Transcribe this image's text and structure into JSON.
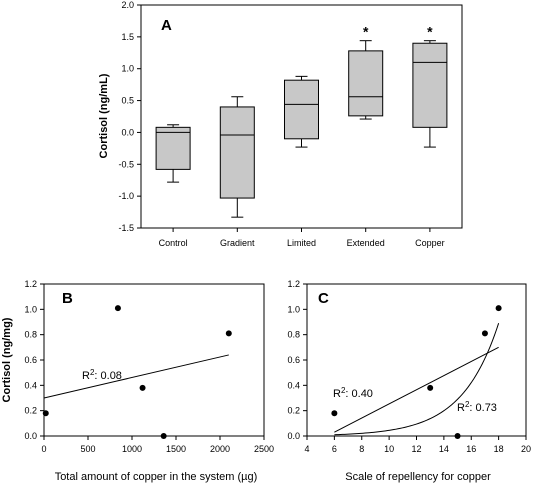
{
  "chart_data": [
    {
      "panel": "A",
      "type": "box",
      "ylabel": "Cortisol (ng/mL)",
      "ylim": [
        -1.5,
        2.0
      ],
      "yticks": [
        "-1.5",
        "-1.0",
        "-0.5",
        "0.0",
        "0.5",
        "1.0",
        "1.5",
        "2.0"
      ],
      "categories": [
        "Control",
        "Gradient",
        "Limited",
        "Extended",
        "Copper"
      ],
      "boxes": [
        {
          "category": "Control",
          "whisker_low": -0.78,
          "q1": -0.58,
          "median": 0.0,
          "q3": 0.08,
          "whisker_high": 0.12,
          "significant": ""
        },
        {
          "category": "Gradient",
          "whisker_low": -1.33,
          "q1": -1.03,
          "median": -0.04,
          "q3": 0.4,
          "whisker_high": 0.56,
          "significant": ""
        },
        {
          "category": "Limited",
          "whisker_low": -0.23,
          "q1": -0.1,
          "median": 0.44,
          "q3": 0.82,
          "whisker_high": 0.88,
          "significant": ""
        },
        {
          "category": "Extended",
          "whisker_low": 0.21,
          "q1": 0.26,
          "median": 0.56,
          "q3": 1.28,
          "whisker_high": 1.44,
          "significant": "*"
        },
        {
          "category": "Copper",
          "whisker_low": -0.23,
          "q1": 0.08,
          "median": 1.1,
          "q3": 1.4,
          "whisker_high": 1.44,
          "significant": "*"
        }
      ]
    },
    {
      "panel": "B",
      "type": "scatter",
      "xlabel": "Total amount of copper in the system (µg)",
      "ylabel": "Cortisol (ng/mg)",
      "xlim": [
        0,
        2500
      ],
      "ylim": [
        0,
        1.2
      ],
      "xticks": [
        "0",
        "500",
        "1000",
        "1500",
        "2000",
        "2500"
      ],
      "yticks": [
        "0.0",
        "0.2",
        "0.4",
        "0.6",
        "0.8",
        "1.0",
        "1.2"
      ],
      "points": [
        {
          "x": 20,
          "y": 0.18
        },
        {
          "x": 840,
          "y": 1.01
        },
        {
          "x": 1120,
          "y": 0.38
        },
        {
          "x": 1360,
          "y": 0.0
        },
        {
          "x": 2100,
          "y": 0.81
        }
      ],
      "fit_line": {
        "x": [
          0,
          2100
        ],
        "y": [
          0.3,
          0.64
        ]
      },
      "annotation": {
        "label": "R",
        "sup": "2",
        "value": ": 0.08"
      }
    },
    {
      "panel": "C",
      "type": "scatter",
      "xlabel": "Scale of repellency for copper",
      "ylabel": "",
      "xlim": [
        4,
        20
      ],
      "ylim": [
        0,
        1.2
      ],
      "xticks": [
        "4",
        "6",
        "8",
        "10",
        "12",
        "14",
        "16",
        "18",
        "20"
      ],
      "yticks": [
        "0.0",
        "0.2",
        "0.4",
        "0.6",
        "0.8",
        "1.0",
        "1.2"
      ],
      "points": [
        {
          "x": 6,
          "y": 0.18
        },
        {
          "x": 13,
          "y": 0.38
        },
        {
          "x": 15,
          "y": 0.0
        },
        {
          "x": 17,
          "y": 0.81
        },
        {
          "x": 18,
          "y": 1.01
        }
      ],
      "fit_line": {
        "x": [
          6,
          18
        ],
        "y": [
          0.03,
          0.7
        ]
      },
      "fit_curve": {
        "a": 0.01,
        "b": 0.3741,
        "x0": 6,
        "x1": 18
      },
      "annotations": [
        {
          "label": "R",
          "sup": "2",
          "value": ": 0.40"
        },
        {
          "label": "R",
          "sup": "2",
          "value": ": 0.73"
        }
      ]
    }
  ]
}
